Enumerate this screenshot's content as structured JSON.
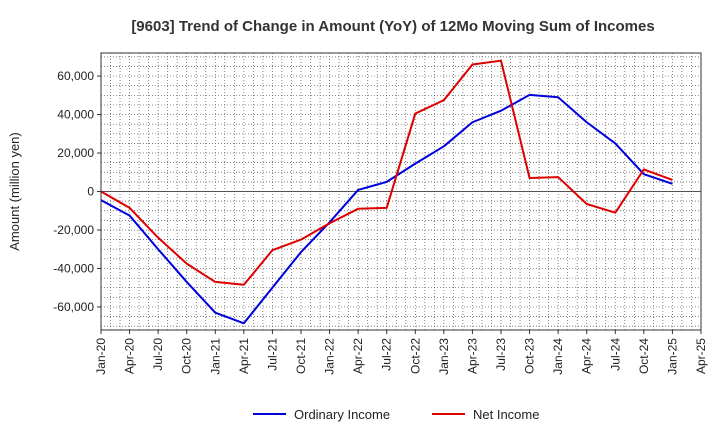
{
  "chart_data": {
    "type": "line",
    "title": "[9603]  Trend of Change in Amount (YoY) of 12Mo Moving Sum of Incomes",
    "ylabel": "Amount (million yen)",
    "xlabel": "",
    "categories": [
      "Jan-20",
      "Apr-20",
      "Jul-20",
      "Oct-20",
      "Jan-21",
      "Apr-21",
      "Jul-21",
      "Oct-21",
      "Jan-22",
      "Apr-22",
      "Jul-22",
      "Oct-22",
      "Jan-23",
      "Apr-23",
      "Jul-23",
      "Oct-23",
      "Jan-24",
      "Apr-24",
      "Jul-24",
      "Oct-24",
      "Jan-25",
      "Apr-25"
    ],
    "ylim": [
      -72000,
      72000
    ],
    "yticks": [
      -60000,
      -40000,
      -20000,
      0,
      20000,
      40000,
      60000
    ],
    "ytick_labels": [
      "-60,000",
      "-40,000",
      "-20,000",
      "0",
      "20,000",
      "40,000",
      "60,000"
    ],
    "grid": true,
    "legend_position": "bottom",
    "series": [
      {
        "name": "Ordinary Income",
        "color": "#0000dd",
        "values": [
          -4500,
          -12500,
          -30000,
          -47000,
          -63000,
          -68500,
          -50000,
          -31500,
          -16000,
          800,
          5000,
          14500,
          23500,
          36000,
          42000,
          50200,
          49000,
          36000,
          25000,
          9000,
          4000,
          null
        ]
      },
      {
        "name": "Net Income",
        "color": "#dd0000",
        "values": [
          0,
          -8500,
          -24000,
          -37500,
          -47000,
          -48500,
          -30500,
          -25000,
          -16500,
          -9000,
          -8500,
          40500,
          47500,
          66000,
          68000,
          7000,
          7500,
          -6500,
          -11000,
          11500,
          6000,
          null
        ]
      }
    ]
  }
}
